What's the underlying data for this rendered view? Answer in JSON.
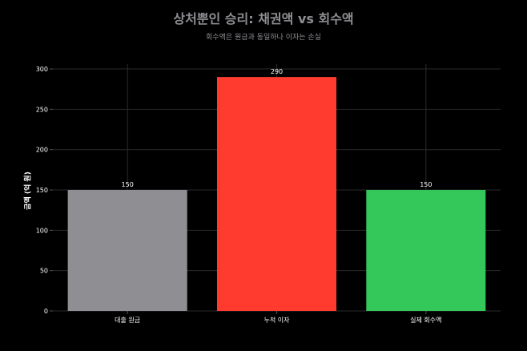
{
  "chart_data": {
    "type": "bar",
    "title": "상처뿐인 승리: 채권액 vs 회수액",
    "subtitle": "회수액은 원금과 동일하나 이자는 손실",
    "xlabel": "",
    "ylabel": "금액 (억 원)",
    "categories": [
      "대출 원금",
      "누적 이자",
      "실제 회수액"
    ],
    "values": [
      150,
      290,
      150
    ],
    "data_labels": [
      "150",
      "290",
      "150"
    ],
    "colors": [
      "#8e8e93",
      "#ff3b30",
      "#34c759"
    ],
    "ylim": [
      0,
      300
    ],
    "yticks": [
      0,
      50,
      100,
      150,
      200,
      250,
      300
    ],
    "grid": true,
    "background": "#000000",
    "text_color": "#ffffff",
    "title_color": "#8e8e93"
  }
}
